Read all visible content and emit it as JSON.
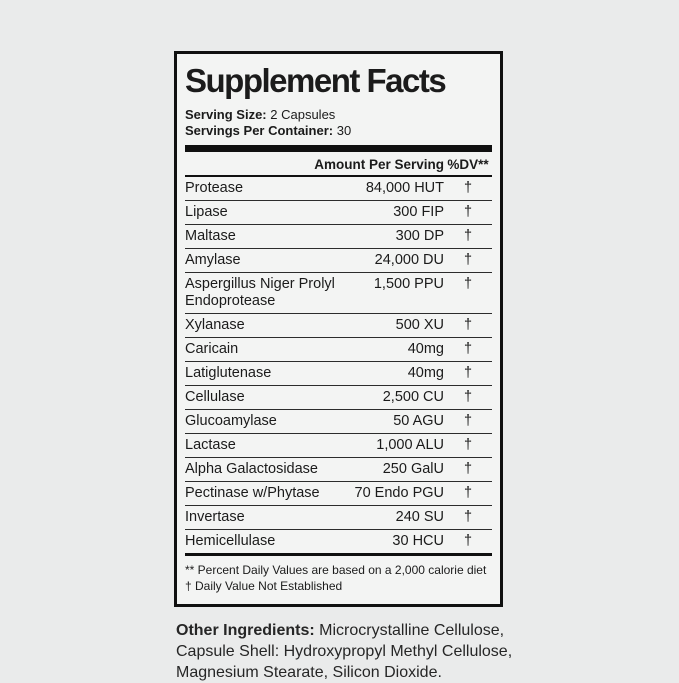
{
  "panel": {
    "title": "Supplement Facts",
    "serving_size_label": "Serving Size:",
    "serving_size_value": "2 Capsules",
    "servings_per_container_label": "Servings Per Container:",
    "servings_per_container_value": "30",
    "column_header_amount": "Amount Per Serving",
    "column_header_dv": "%DV**",
    "rows": [
      {
        "name": "Protease",
        "amount": "84,000 HUT",
        "dv": "†"
      },
      {
        "name": "Lipase",
        "amount": "300 FIP",
        "dv": "†"
      },
      {
        "name": "Maltase",
        "amount": "300 DP",
        "dv": "†"
      },
      {
        "name": "Amylase",
        "amount": "24,000 DU",
        "dv": "†"
      },
      {
        "name": "Aspergillus Niger Prolyl Endoprotease",
        "amount": "1,500 PPU",
        "dv": "†"
      },
      {
        "name": "Xylanase",
        "amount": "500 XU",
        "dv": "†"
      },
      {
        "name": "Caricain",
        "amount": "40mg",
        "dv": "†"
      },
      {
        "name": "Latiglutenase",
        "amount": "40mg",
        "dv": "†"
      },
      {
        "name": "Cellulase",
        "amount": "2,500 CU",
        "dv": "†"
      },
      {
        "name": "Glucoamylase",
        "amount": "50 AGU",
        "dv": "†"
      },
      {
        "name": "Lactase",
        "amount": "1,000 ALU",
        "dv": "†"
      },
      {
        "name": "Alpha Galactosidase",
        "amount": "250 GalU",
        "dv": "†"
      },
      {
        "name": "Pectinase w/Phytase",
        "amount": "70 Endo PGU",
        "dv": "†"
      },
      {
        "name": "Invertase",
        "amount": "240 SU",
        "dv": "†"
      },
      {
        "name": "Hemicellulase",
        "amount": "30 HCU",
        "dv": "†"
      }
    ],
    "footnotes": [
      "** Percent Daily Values are based on a 2,000 calorie diet",
      "† Daily Value Not Established"
    ]
  },
  "other_ingredients": {
    "label": "Other Ingredients:",
    "line1": "Microcrystalline Cellulose,",
    "line2": "Capsule Shell: Hydroxypropyl Methyl Cellulose,",
    "line3": "Magnesium Stearate, Silicon Dioxide."
  },
  "colors": {
    "page_background": "#eaebeb",
    "panel_background": "#f3f4f3",
    "border_and_rules": "#101010",
    "text": "#1b1b1b"
  }
}
